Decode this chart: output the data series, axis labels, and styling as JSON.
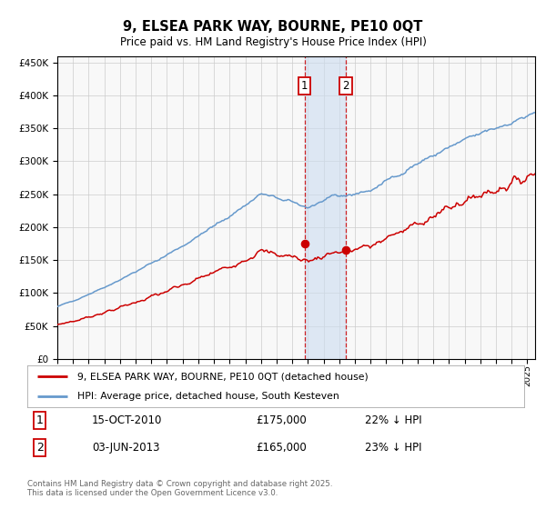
{
  "title": "9, ELSEA PARK WAY, BOURNE, PE10 0QT",
  "subtitle": "Price paid vs. HM Land Registry's House Price Index (HPI)",
  "legend_line1": "9, ELSEA PARK WAY, BOURNE, PE10 0QT (detached house)",
  "legend_line2": "HPI: Average price, detached house, South Kesteven",
  "footnote": "Contains HM Land Registry data © Crown copyright and database right 2025.\nThis data is licensed under the Open Government Licence v3.0.",
  "sale1_date": "15-OCT-2010",
  "sale1_price": 175000,
  "sale1_hpi": "22% ↓ HPI",
  "sale2_date": "03-JUN-2013",
  "sale2_price": 165000,
  "sale2_hpi": "23% ↓ HPI",
  "red_color": "#cc0000",
  "blue_color": "#6699cc",
  "vline1_x": 2010.79,
  "vline2_x": 2013.42,
  "ylim_min": 0,
  "ylim_max": 460000,
  "xlim_min": 1995,
  "xlim_max": 2025.5,
  "background_color": "#f8f8f8",
  "grid_color": "#cccccc"
}
